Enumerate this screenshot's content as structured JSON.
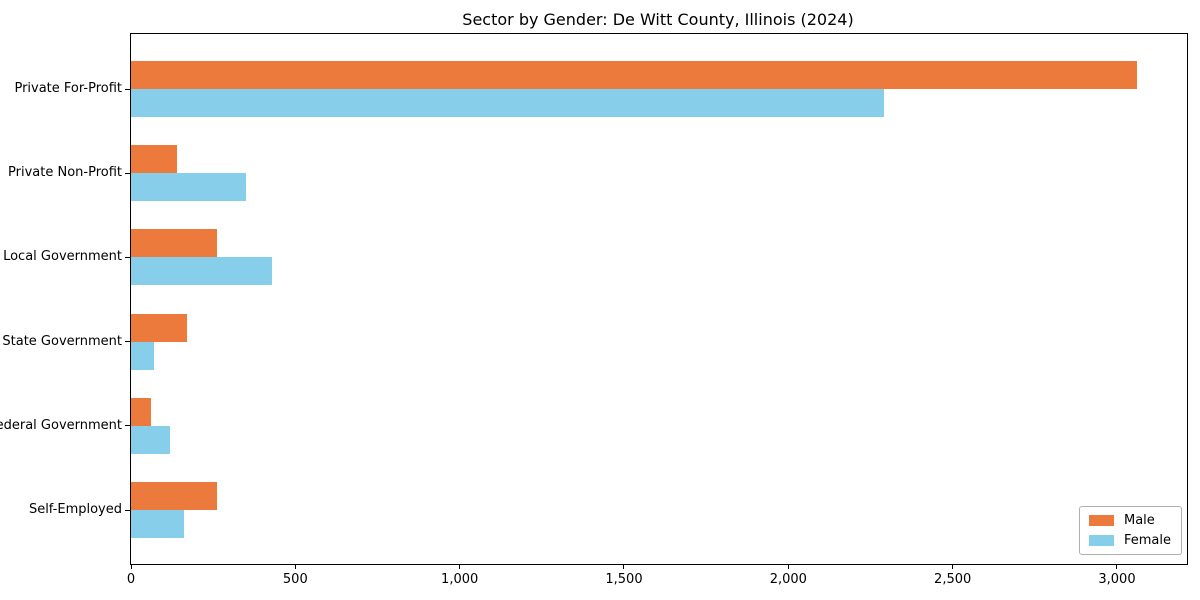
{
  "chart_data": {
    "type": "bar",
    "orientation": "horizontal",
    "title": "Sector by Gender: De Witt County, Illinois (2024)",
    "categories": [
      "Private For-Profit",
      "Private Non-Profit",
      "Local Government",
      "State Government",
      "Federal Government",
      "Self-Employed"
    ],
    "series": [
      {
        "name": "Male",
        "color": "#EC7A3D",
        "values": [
          3060,
          140,
          260,
          170,
          60,
          260
        ]
      },
      {
        "name": "Female",
        "color": "#87CEEB",
        "values": [
          2290,
          350,
          430,
          70,
          120,
          160
        ]
      }
    ],
    "xlim": [
      0,
      3213
    ],
    "x_ticks": [
      0,
      500,
      1000,
      1500,
      2000,
      2500,
      3000
    ],
    "x_tick_labels": [
      "0",
      "500",
      "1,000",
      "1,500",
      "2,000",
      "2,500",
      "3,000"
    ],
    "xlabel": "",
    "ylabel": "",
    "grid": false,
    "legend": {
      "position": "lower right",
      "entries": [
        "Male",
        "Female"
      ]
    },
    "axis_color": "#000000",
    "legend_border_color": "#b0b0b0",
    "background_color": "#ffffff"
  }
}
